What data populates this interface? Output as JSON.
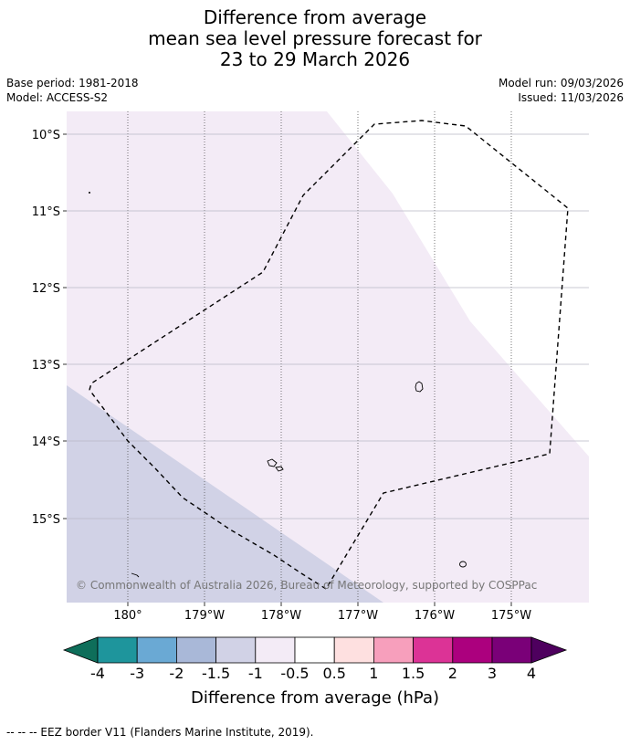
{
  "title": {
    "line1": "Difference from average",
    "line2": "mean sea level pressure forecast for",
    "line3": "23 to 29 March 2026"
  },
  "meta": {
    "base_period": "Base period: 1981-2018",
    "model": "Model: ACCESS-S2",
    "model_run": "Model run: 09/03/2026",
    "issued": "Issued: 11/03/2026"
  },
  "map": {
    "lon_labels": [
      "180°",
      "179°W",
      "178°W",
      "177°W",
      "176°W",
      "175°W"
    ],
    "lat_labels": [
      "10°S",
      "11°S",
      "12°S",
      "13°S",
      "14°S",
      "15°S"
    ],
    "copyright": "© Commonwealth of Australia 2026, Bureau of Meteorology, supported by COSPPac",
    "field_colors": {
      "minus1_to_minus0_5": "#f3ebf6",
      "minus1_5_to_minus1": "#d1d2e6",
      "zero_band": "#ffffff"
    }
  },
  "legend": {
    "title": "Difference from average (hPa)",
    "tick_labels": [
      "-4",
      "-3",
      "-2",
      "-1.5",
      "-1",
      "-0.5",
      "0.5",
      "1",
      "1.5",
      "2",
      "3",
      "4"
    ],
    "colors": [
      "#0e6e5a",
      "#1e959c",
      "#6aa9d4",
      "#a9b8d8",
      "#d1d2e6",
      "#f3ebf6",
      "#ffffff",
      "#fee0e0",
      "#f79fbc",
      "#dc3396",
      "#ac007e",
      "#7a0078",
      "#4e005e"
    ]
  },
  "footer": {
    "eez_note": "-- -- -- EEZ border V11 (Flanders Marine Institute, 2019)."
  }
}
